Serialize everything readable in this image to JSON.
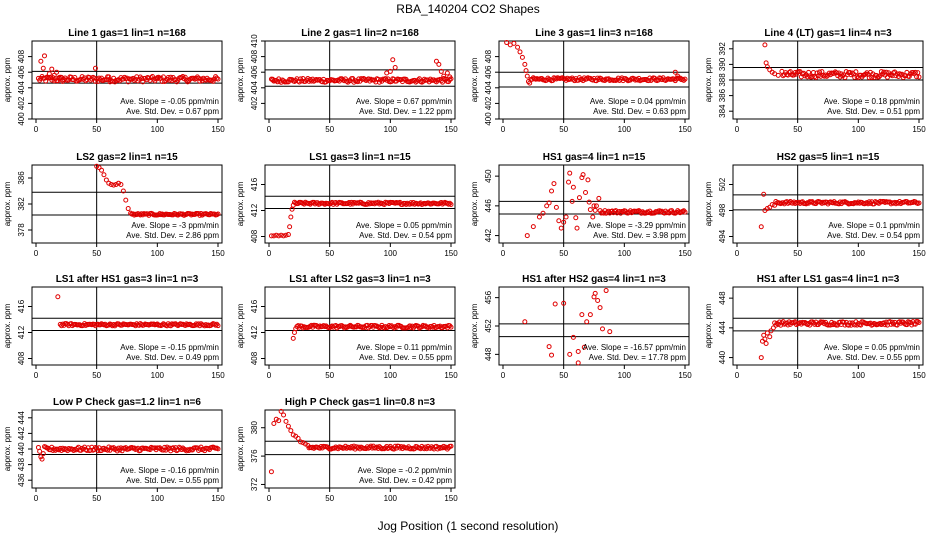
{
  "page": {
    "title": "RBA_140204  CO2 Shapes",
    "x_caption": "Jog Position (1 second resolution)"
  },
  "chart_data": [
    {
      "type": "scatter",
      "title": "Line 1 gas=1 lin=1 n=168",
      "ylabel": "approx. ppm",
      "xlim": [
        0,
        150
      ],
      "ylim": [
        400,
        410
      ],
      "yticks": [
        400,
        402,
        404,
        406,
        408
      ],
      "xticks": [
        0,
        50,
        100,
        150
      ],
      "vline": 50,
      "hlines": [
        404.6,
        406.1
      ],
      "slope_text": "Ave. Slope = -0.05 ppm/min",
      "std_text": "Ave. Std. Dev. = 0.67 ppm",
      "points": [
        [
          4,
          407.4
        ],
        [
          6,
          406.5
        ],
        [
          7,
          408.1
        ],
        [
          9,
          405.3
        ],
        [
          11,
          405.8
        ],
        [
          13,
          406.4
        ],
        [
          15,
          405.6
        ],
        [
          17,
          406.0
        ],
        [
          19,
          405.2
        ],
        [
          22,
          405.0
        ],
        [
          49,
          406.5
        ],
        [
          60,
          405.4
        ],
        [
          100,
          405.3
        ]
      ],
      "band": {
        "x0": 2,
        "x1": 150,
        "y": 405.1,
        "amp": 0.35
      }
    },
    {
      "type": "scatter",
      "title": "Line 2 gas=1 lin=2 n=168",
      "ylabel": "approx. ppm",
      "xlim": [
        0,
        150
      ],
      "ylim": [
        400,
        410
      ],
      "yticks": [
        402,
        404,
        406,
        408,
        410
      ],
      "xticks": [
        0,
        50,
        100,
        150
      ],
      "vline": 50,
      "hlines": [
        404.2,
        406.3
      ],
      "slope_text": "Ave. Slope = 0.67 ppm/min",
      "std_text": "Ave. Std. Dev. = 1.22 ppm",
      "points": [
        [
          97,
          405.9
        ],
        [
          100,
          406.1
        ],
        [
          102,
          407.6
        ],
        [
          104,
          406.6
        ],
        [
          138,
          407.4
        ],
        [
          140,
          407.0
        ],
        [
          142,
          406.1
        ],
        [
          144,
          405.5
        ],
        [
          147,
          405.9
        ],
        [
          149,
          405.4
        ],
        [
          3,
          405.0
        ],
        [
          60,
          405.1
        ]
      ],
      "band": {
        "x0": 2,
        "x1": 150,
        "y": 404.95,
        "amp": 0.25
      }
    },
    {
      "type": "scatter",
      "title": "Line 3 gas=1 lin=3 n=168",
      "ylabel": "approx. ppm",
      "xlim": [
        0,
        150
      ],
      "ylim": [
        400,
        410
      ],
      "yticks": [
        400,
        402,
        404,
        406,
        408
      ],
      "xticks": [
        0,
        50,
        100,
        150
      ],
      "vline": 50,
      "hlines": [
        404.1,
        406.0
      ],
      "slope_text": "Ave. Slope = 0.04 ppm/min",
      "std_text": "Ave. Std. Dev. = 0.63 ppm",
      "points": [
        [
          3,
          409.8
        ],
        [
          6,
          409.5
        ],
        [
          9,
          409.7
        ],
        [
          12,
          409.2
        ],
        [
          14,
          408.6
        ],
        [
          16,
          407.9
        ],
        [
          18,
          407.0
        ],
        [
          19,
          406.2
        ],
        [
          20,
          405.5
        ],
        [
          21,
          404.8
        ],
        [
          22,
          404.6
        ],
        [
          142,
          406.0
        ],
        [
          144,
          405.5
        ]
      ],
      "band": {
        "x0": 23,
        "x1": 150,
        "y": 405.1,
        "amp": 0.2
      }
    },
    {
      "type": "scatter",
      "title": "Line 4 (LT) gas=1 lin=4 n=3",
      "ylabel": "approx. ppm",
      "xlim": [
        0,
        150
      ],
      "ylim": [
        383,
        393
      ],
      "yticks": [
        384,
        386,
        388,
        390,
        392
      ],
      "xticks": [
        0,
        50,
        100,
        150
      ],
      "vline": 50,
      "hlines": [
        388.0,
        389.6
      ],
      "slope_text": "Ave. Slope = 0.18 ppm/min",
      "std_text": "Ave. Std. Dev. = 0.51 ppm",
      "points": [
        [
          23,
          392.5
        ],
        [
          24,
          390.2
        ],
        [
          25,
          389.7
        ],
        [
          27,
          389.3
        ],
        [
          29,
          389.0
        ],
        [
          31,
          388.8
        ],
        [
          34,
          388.6
        ],
        [
          37,
          389.1
        ]
      ],
      "band": {
        "x0": 38,
        "x1": 150,
        "y": 388.7,
        "amp": 0.4
      }
    },
    {
      "type": "scatter",
      "title": "LS2 gas=2 lin=1 n=15",
      "ylabel": "approx. ppm",
      "xlim": [
        0,
        150
      ],
      "ylim": [
        376,
        388
      ],
      "yticks": [
        378,
        382,
        386
      ],
      "xticks": [
        0,
        50,
        100,
        150
      ],
      "vline": 50,
      "hlines": [
        380.3,
        383.8
      ],
      "slope_text": "Ave. Slope = -3 ppm/min",
      "std_text": "Ave. Std. Dev. = 2.86 ppm",
      "points": [
        [
          50,
          387.8
        ],
        [
          52,
          387.6
        ],
        [
          54,
          387.2
        ],
        [
          56,
          386.5
        ],
        [
          58,
          385.7
        ],
        [
          60,
          385.2
        ],
        [
          62,
          385.0
        ],
        [
          64,
          384.9
        ],
        [
          66,
          385.0
        ],
        [
          68,
          385.2
        ],
        [
          70,
          385.0
        ],
        [
          72,
          384.0
        ],
        [
          74,
          382.6
        ],
        [
          76,
          381.3
        ],
        [
          78,
          380.6
        ]
      ],
      "band": {
        "x0": 79,
        "x1": 150,
        "y": 380.4,
        "amp": 0.15
      }
    },
    {
      "type": "scatter",
      "title": "LS1 gas=3 lin=1 n=15",
      "ylabel": "approx. ppm",
      "xlim": [
        0,
        150
      ],
      "ylim": [
        407,
        419
      ],
      "yticks": [
        408,
        412,
        416
      ],
      "xticks": [
        0,
        50,
        100,
        150
      ],
      "vline": 50,
      "hlines": [
        412.3,
        414.2
      ],
      "slope_text": "Ave. Slope = 0.05 ppm/min",
      "std_text": "Ave. Std. Dev. = 0.54 ppm",
      "points": [
        [
          2,
          408.1
        ],
        [
          4,
          408.1
        ],
        [
          6,
          408.2
        ],
        [
          8,
          408.1
        ],
        [
          10,
          408.2
        ],
        [
          12,
          408.1
        ],
        [
          14,
          408.2
        ],
        [
          16,
          408.3
        ],
        [
          17,
          409.5
        ],
        [
          18,
          411.0
        ],
        [
          19,
          412.2
        ],
        [
          20,
          412.8
        ]
      ],
      "band": {
        "x0": 21,
        "x1": 150,
        "y": 413.1,
        "amp": 0.18
      }
    },
    {
      "type": "scatter",
      "title": "HS1 gas=4 lin=1 n=15",
      "ylabel": "approx. ppm",
      "xlim": [
        0,
        150
      ],
      "ylim": [
        441,
        451.5
      ],
      "yticks": [
        442,
        446,
        450
      ],
      "xticks": [
        0,
        50,
        100,
        150
      ],
      "vline": 50,
      "hlines": [
        444.9,
        446.6
      ],
      "slope_text": "Ave. Slope = -3.29 ppm/min",
      "std_text": "Ave. Std. Dev. = 3.98 ppm",
      "points": [
        [
          20,
          442.0
        ],
        [
          25,
          443.2
        ],
        [
          30,
          444.5
        ],
        [
          33,
          445.0
        ],
        [
          36,
          446.0
        ],
        [
          38,
          446.4
        ],
        [
          40,
          448.0
        ],
        [
          42,
          449.0
        ],
        [
          44,
          445.8
        ],
        [
          46,
          444.0
        ],
        [
          48,
          443.0
        ],
        [
          50,
          443.8
        ],
        [
          52,
          444.5
        ],
        [
          54,
          449.2
        ],
        [
          55,
          450.4
        ],
        [
          57,
          446.6
        ],
        [
          58,
          448.5
        ],
        [
          60,
          444.4
        ],
        [
          61,
          443.0
        ],
        [
          63,
          447.1
        ],
        [
          65,
          449.8
        ],
        [
          66,
          450.2
        ],
        [
          68,
          447.8
        ],
        [
          70,
          449.5
        ],
        [
          71,
          446.5
        ],
        [
          72,
          445.5
        ],
        [
          74,
          444.5
        ],
        [
          75,
          446.0
        ],
        [
          76,
          445.4
        ],
        [
          77,
          446.0
        ],
        [
          79,
          447.0
        ]
      ],
      "band": {
        "x0": 80,
        "x1": 150,
        "y": 445.2,
        "amp": 0.2
      }
    },
    {
      "type": "scatter",
      "title": "HS2 gas=5 lin=1 n=15",
      "ylabel": "approx. ppm",
      "xlim": [
        0,
        150
      ],
      "ylim": [
        493,
        505
      ],
      "yticks": [
        494,
        498,
        502
      ],
      "xticks": [
        0,
        50,
        100,
        150
      ],
      "vline": 50,
      "hlines": [
        498.1,
        500.4
      ],
      "slope_text": "Ave. Slope = 0.1 ppm/min",
      "std_text": "Ave. Std. Dev. = 0.54 ppm",
      "points": [
        [
          20,
          495.5
        ],
        [
          22,
          500.5
        ],
        [
          23,
          498.0
        ],
        [
          25,
          498.3
        ],
        [
          27,
          498.5
        ],
        [
          29,
          498.9
        ],
        [
          31,
          498.8
        ]
      ],
      "band": {
        "x0": 32,
        "x1": 150,
        "y": 499.2,
        "amp": 0.2
      }
    },
    {
      "type": "scatter",
      "title": "LS1 after HS1 gas=3 lin=1 n=3",
      "ylabel": "approx. ppm",
      "xlim": [
        0,
        150
      ],
      "ylim": [
        407,
        419
      ],
      "yticks": [
        408,
        412,
        416
      ],
      "xticks": [
        0,
        50,
        100,
        150
      ],
      "vline": 50,
      "hlines": [
        412.3,
        414.2
      ],
      "slope_text": "Ave. Slope = -0.15 ppm/min",
      "std_text": "Ave. Std. Dev. = 0.49 ppm",
      "points": [
        [
          18,
          417.5
        ]
      ],
      "band": {
        "x0": 20,
        "x1": 150,
        "y": 413.2,
        "amp": 0.18
      }
    },
    {
      "type": "scatter",
      "title": "LS1 after LS2 gas=3 lin=1 n=3",
      "ylabel": "approx. ppm",
      "xlim": [
        0,
        150
      ],
      "ylim": [
        407,
        419
      ],
      "yticks": [
        408,
        412,
        416
      ],
      "xticks": [
        0,
        50,
        100,
        150
      ],
      "vline": 50,
      "hlines": [
        412.3,
        414.2
      ],
      "slope_text": "Ave. Slope = 0.11 ppm/min",
      "std_text": "Ave. Std. Dev. = 0.55 ppm",
      "points": [
        [
          20,
          411.1
        ],
        [
          21,
          412.0
        ],
        [
          22,
          412.6
        ]
      ],
      "band": {
        "x0": 23,
        "x1": 150,
        "y": 412.9,
        "amp": 0.22
      }
    },
    {
      "type": "scatter",
      "title": "HS1 after HS2 gas=4 lin=1 n=3",
      "ylabel": "approx. ppm",
      "xlim": [
        0,
        150
      ],
      "ylim": [
        446.5,
        457.5
      ],
      "yticks": [
        448,
        452,
        456
      ],
      "xticks": [
        0,
        50,
        100,
        150
      ],
      "vline": 50,
      "hlines": [
        450.5,
        452.3
      ],
      "slope_text": "Ave. Slope = -16.57 ppm/min",
      "std_text": "Ave. Std. Dev. = 17.78 ppm",
      "points": [
        [
          18,
          452.6
        ],
        [
          38,
          449.1
        ],
        [
          40,
          447.9
        ],
        [
          43,
          455.1
        ],
        [
          50,
          455.2
        ],
        [
          55,
          448.0
        ],
        [
          58,
          450.4
        ],
        [
          62,
          448.4
        ],
        [
          65,
          453.6
        ],
        [
          67,
          449.0
        ],
        [
          69,
          452.6
        ],
        [
          72,
          453.6
        ],
        [
          75,
          456.1
        ],
        [
          76,
          456.6
        ],
        [
          78,
          455.6
        ],
        [
          80,
          454.6
        ],
        [
          82,
          451.6
        ],
        [
          85,
          457.0
        ],
        [
          88,
          451.2
        ],
        [
          62,
          446.8
        ]
      ],
      "band": null
    },
    {
      "type": "scatter",
      "title": "HS1 after LS1 gas=4 lin=1 n=3",
      "ylabel": "approx. ppm",
      "xlim": [
        0,
        150
      ],
      "ylim": [
        439,
        449.5
      ],
      "yticks": [
        440,
        444,
        448
      ],
      "xticks": [
        0,
        50,
        100,
        150
      ],
      "vline": 50,
      "hlines": [
        443.6,
        445.3
      ],
      "slope_text": "Ave. Slope = 0.05 ppm/min",
      "std_text": "Ave. Std. Dev. = 0.55 ppm",
      "points": [
        [
          20,
          440.0
        ],
        [
          21,
          442.2
        ],
        [
          22,
          443.0
        ],
        [
          23,
          442.5
        ],
        [
          24,
          441.9
        ],
        [
          25,
          443.3
        ],
        [
          27,
          442.8
        ],
        [
          28,
          443.6
        ],
        [
          30,
          444.0
        ]
      ],
      "band": {
        "x0": 31,
        "x1": 150,
        "y": 444.6,
        "amp": 0.25
      }
    },
    {
      "type": "scatter",
      "title": "Low P Check gas=1.2 lin=1 n=6",
      "ylabel": "approx. ppm",
      "xlim": [
        0,
        150
      ],
      "ylim": [
        435,
        445
      ],
      "yticks": [
        436,
        438,
        440,
        442,
        444
      ],
      "xticks": [
        0,
        50,
        100,
        150
      ],
      "vline": 50,
      "hlines": [
        439.3,
        441.0
      ],
      "slope_text": "Ave. Slope = -0.16 ppm/min",
      "std_text": "Ave. Std. Dev. = 0.55 ppm",
      "points": [
        [
          2,
          440.2
        ],
        [
          3,
          439.7
        ],
        [
          4,
          439.0
        ],
        [
          5,
          438.7
        ],
        [
          6,
          439.4
        ],
        [
          7,
          440.3
        ]
      ],
      "band": {
        "x0": 8,
        "x1": 150,
        "y": 440.0,
        "amp": 0.25
      }
    },
    {
      "type": "scatter",
      "title": "High P Check gas=1 lin=0.8 n=3",
      "ylabel": "approx. ppm",
      "xlim": [
        0,
        150
      ],
      "ylim": [
        371.5,
        382.5
      ],
      "yticks": [
        372,
        376,
        380
      ],
      "xticks": [
        0,
        50,
        100,
        150
      ],
      "vline": 50,
      "hlines": [
        376.2,
        378.1
      ],
      "slope_text": "Ave. Slope = -0.2 ppm/min",
      "std_text": "Ave. Std. Dev. = 0.42 ppm",
      "points": [
        [
          2,
          373.8
        ],
        [
          4,
          380.6
        ],
        [
          6,
          381.2
        ],
        [
          8,
          381.0
        ],
        [
          10,
          382.3
        ],
        [
          12,
          381.8
        ],
        [
          14,
          380.9
        ],
        [
          16,
          380.2
        ],
        [
          18,
          379.6
        ],
        [
          20,
          379.0
        ],
        [
          22,
          378.8
        ],
        [
          24,
          378.5
        ],
        [
          26,
          378.0
        ],
        [
          28,
          377.9
        ],
        [
          30,
          377.7
        ],
        [
          32,
          377.5
        ]
      ],
      "band": {
        "x0": 33,
        "x1": 150,
        "y": 377.2,
        "amp": 0.22
      }
    }
  ]
}
